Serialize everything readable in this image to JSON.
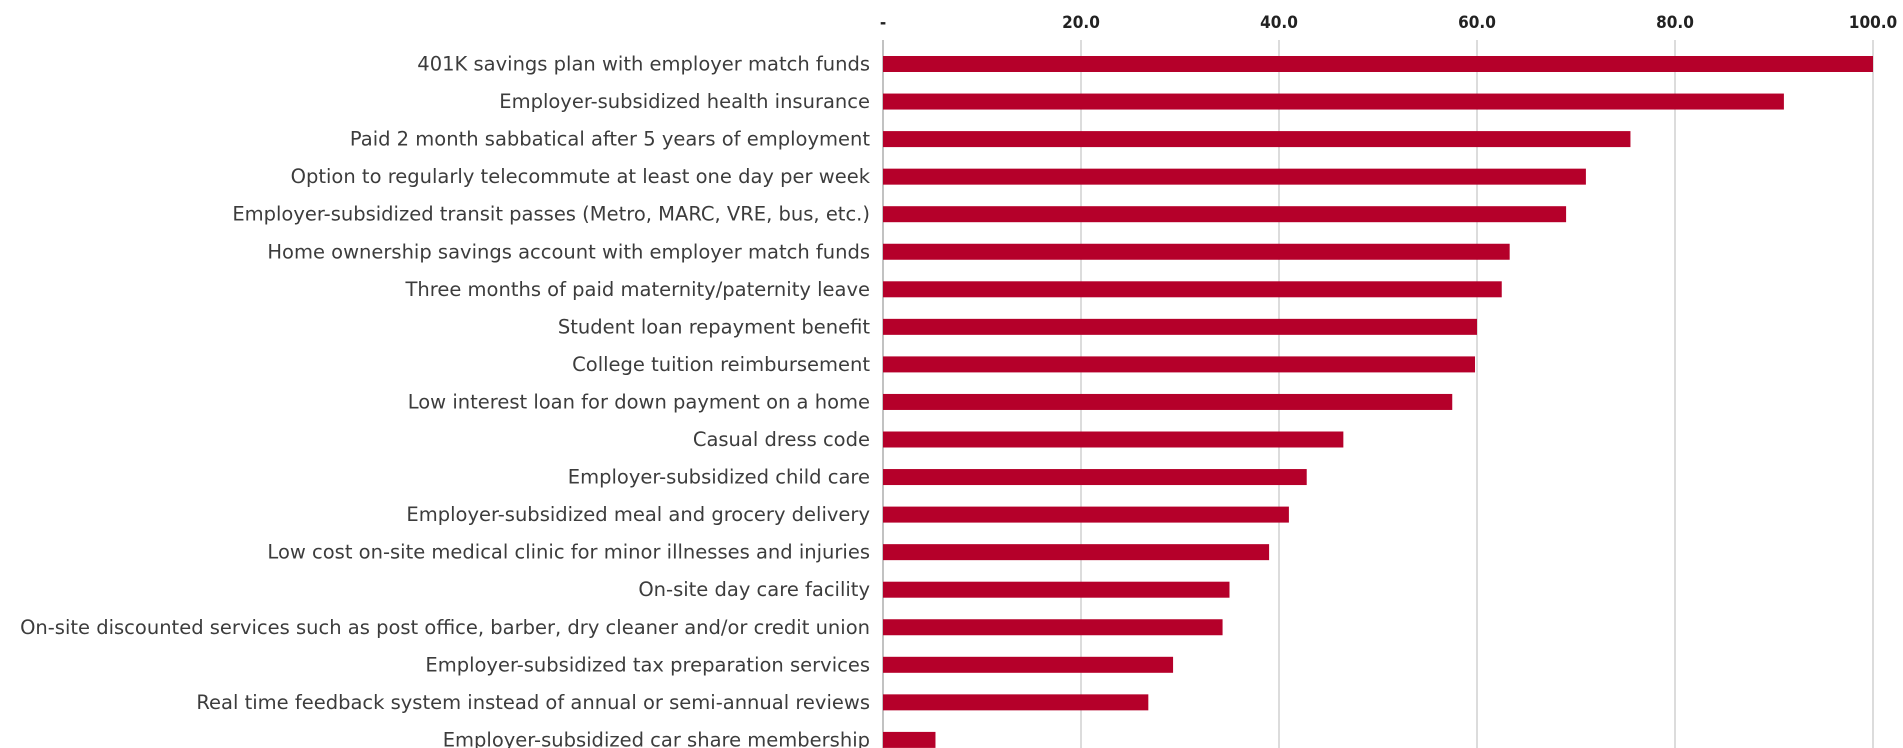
{
  "chart_data": {
    "type": "bar",
    "orientation": "horizontal",
    "title": "",
    "xlabel": "",
    "ylabel": "",
    "xlim": [
      0,
      100
    ],
    "x_ticks": [
      0,
      20,
      40,
      60,
      80,
      100
    ],
    "x_tick_labels": [
      "-",
      "20.0",
      "40.0",
      "60.0",
      "80.0",
      "100.0"
    ],
    "grid": true,
    "bar_color": "#b5002a",
    "categories": [
      "401K savings plan with employer match funds",
      "Employer-subsidized health insurance",
      "Paid 2 month sabbatical after 5 years of employment",
      "Option to regularly telecommute at least one day per week",
      "Employer-subsidized transit passes (Metro, MARC, VRE, bus, etc.)",
      "Home ownership savings account with employer match funds",
      "Three months of paid maternity/paternity leave",
      "Student loan repayment benefit",
      "College tuition reimbursement",
      "Low interest loan for down payment on a home",
      "Casual dress code",
      "Employer-subsidized child care",
      "Employer-subsidized meal and grocery delivery",
      "Low cost on-site medical clinic for minor illnesses and injuries",
      "On-site day care facility",
      "On-site discounted services such as post office, barber, dry cleaner and/or credit union",
      "Employer-subsidized tax preparation services",
      "Real time feedback system instead of annual or semi-annual reviews",
      "Employer-subsidized car share membership"
    ],
    "values": [
      100.0,
      91.0,
      75.5,
      71.0,
      69.0,
      63.3,
      62.5,
      60.0,
      59.8,
      57.5,
      46.5,
      42.8,
      41.0,
      39.0,
      35.0,
      34.3,
      29.3,
      26.8,
      5.3
    ]
  }
}
